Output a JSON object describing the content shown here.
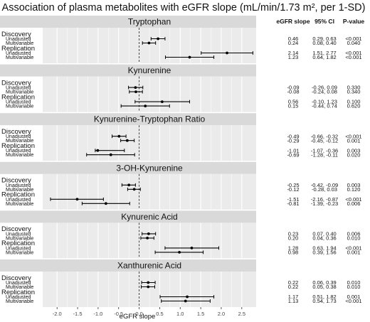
{
  "title": "Association of plasma metabolites with eGFR slope (mL/min/1.73 m², per 1-SD)",
  "columns": {
    "estimate": "eGFR slope",
    "ci": "95% CI",
    "p": "P-value"
  },
  "chart_data": {
    "type": "forest",
    "xlabel": "eGFR slope",
    "xlim": [
      -2.35,
      2.85
    ],
    "xticks": [
      -2.0,
      -1.5,
      -1.0,
      -0.5,
      0.0,
      0.5,
      1.0,
      1.5,
      2.0,
      2.5
    ],
    "xtick_labels": [
      "-2.0",
      "-1.5",
      "-1.0",
      "-0.5",
      "0.0",
      "0.5",
      "1.0",
      "1.5",
      "2.0",
      "2.5"
    ],
    "reference_line": 0,
    "grid": true,
    "panels": [
      {
        "name": "Tryptophan",
        "groups": [
          {
            "name": "Discovery",
            "rows": [
              {
                "label": "Unadjusted",
                "est": 0.46,
                "lo": 0.29,
                "hi": 0.63,
                "est_text": "0.46",
                "ci_text": "0.29, 0.63",
                "p_text": "<0.001"
              },
              {
                "label": "Multivariable",
                "est": 0.24,
                "lo": 0.08,
                "hi": 0.4,
                "est_text": "0.24",
                "ci_text": "0.08, 0.40",
                "p_text": "0.040"
              }
            ]
          },
          {
            "name": "Replication",
            "rows": [
              {
                "label": "Unadjusted",
                "est": 2.14,
                "lo": 1.51,
                "hi": 2.77,
                "est_text": "2.14",
                "ci_text": "1.51, 2.77",
                "p_text": "<0.001"
              },
              {
                "label": "Multivariable",
                "est": 1.23,
                "lo": 0.64,
                "hi": 1.82,
                "est_text": "1.23",
                "ci_text": "0.64, 1.82",
                "p_text": "<0.001"
              }
            ]
          }
        ]
      },
      {
        "name": "Kynurenine",
        "groups": [
          {
            "name": "Discovery",
            "rows": [
              {
                "label": "Unadjusted",
                "est": -0.09,
                "lo": -0.26,
                "hi": 0.09,
                "est_text": "-0.09",
                "ci_text": "-0.26, 0.09",
                "p_text": "0.330"
              },
              {
                "label": "Multivariable",
                "est": -0.08,
                "lo": -0.24,
                "hi": 0.08,
                "est_text": "-0.08",
                "ci_text": "-0.24, 0.08",
                "p_text": "0.340"
              }
            ]
          },
          {
            "name": "Replication",
            "rows": [
              {
                "label": "Unadjusted",
                "est": 0.56,
                "lo": -0.1,
                "hi": 1.23,
                "est_text": "0.56",
                "ci_text": "-0.10, 1.23",
                "p_text": "0.100"
              },
              {
                "label": "Multivariable",
                "est": 0.15,
                "lo": -0.44,
                "hi": 0.74,
                "est_text": "0.15",
                "ci_text": "-0.44, 0.74",
                "p_text": "0.620"
              }
            ]
          }
        ]
      },
      {
        "name": "Kynurenine-Tryptophan Ratio",
        "groups": [
          {
            "name": "Discovery",
            "rows": [
              {
                "label": "Unadjusted",
                "est": -0.49,
                "lo": -0.66,
                "hi": -0.32,
                "est_text": "-0.49",
                "ci_text": "-0.66, -0.32",
                "p_text": "<0.001"
              },
              {
                "label": "Multivariable",
                "est": -0.29,
                "lo": -0.45,
                "hi": -0.12,
                "est_text": "-0.29",
                "ci_text": "-0.45, -0.12",
                "p_text": "0.001"
              }
            ]
          },
          {
            "name": "Replication",
            "rows": [
              {
                "label": "Unadjusted",
                "est": -1.01,
                "lo": -1.07,
                "hi": -0.36,
                "est_text": "-1.01",
                "ci_text": "-1.07, -0.36",
                "p_text": "0.003"
              },
              {
                "label": "Multivariable",
                "est": -0.69,
                "lo": -1.28,
                "hi": -0.11,
                "est_text": "-0.69",
                "ci_text": "-1.28, -0.11",
                "p_text": "0.020"
              }
            ]
          }
        ]
      },
      {
        "name": "3-OH-Kynurenine",
        "groups": [
          {
            "name": "Discovery",
            "rows": [
              {
                "label": "Unadjusted",
                "est": -0.25,
                "lo": -0.42,
                "hi": -0.09,
                "est_text": "-0.25",
                "ci_text": "-0.42, -0.09",
                "p_text": "0.003"
              },
              {
                "label": "Multivariable",
                "est": -0.12,
                "lo": -0.28,
                "hi": 0.03,
                "est_text": "-0.12",
                "ci_text": "-0.28, 0.03",
                "p_text": "0.120"
              }
            ]
          },
          {
            "name": "Replication",
            "rows": [
              {
                "label": "Unadjusted",
                "est": -1.51,
                "lo": -2.16,
                "hi": -0.87,
                "est_text": "-1.51",
                "ci_text": "-2.16, -0.87",
                "p_text": "<0.001"
              },
              {
                "label": "Multivariable",
                "est": -0.81,
                "lo": -1.39,
                "hi": -0.23,
                "est_text": "-0.81",
                "ci_text": "-1.39, -0.23",
                "p_text": "0.006"
              }
            ]
          }
        ]
      },
      {
        "name": "Kynurenic Acid",
        "groups": [
          {
            "name": "Discovery",
            "rows": [
              {
                "label": "Unadjusted",
                "est": 0.23,
                "lo": 0.07,
                "hi": 0.4,
                "est_text": "0.23",
                "ci_text": "0.07, 0.40",
                "p_text": "0.006"
              },
              {
                "label": "Multivariable",
                "est": 0.2,
                "lo": 0.04,
                "hi": 0.36,
                "est_text": "0.20",
                "ci_text": "0.04, 0.36",
                "p_text": "0.010"
              }
            ]
          },
          {
            "name": "Replication",
            "rows": [
              {
                "label": "Unadjusted",
                "est": 1.28,
                "lo": 0.63,
                "hi": 1.94,
                "est_text": "1.28",
                "ci_text": "0.63, 1.94",
                "p_text": "<0.001"
              },
              {
                "label": "Multivariable",
                "est": 0.98,
                "lo": 0.39,
                "hi": 1.56,
                "est_text": "0.98",
                "ci_text": "0.39, 1.56",
                "p_text": "0.001"
              }
            ]
          }
        ]
      },
      {
        "name": "Xanthurenic Acid",
        "groups": [
          {
            "name": "Discovery",
            "rows": [
              {
                "label": "Unadjusted",
                "est": 0.22,
                "lo": 0.06,
                "hi": 0.39,
                "est_text": "0.22",
                "ci_text": "0.06, 0.39",
                "p_text": "0.010"
              },
              {
                "label": "Multivariable",
                "est": 0.22,
                "lo": 0.05,
                "hi": 0.38,
                "est_text": "0.22",
                "ci_text": "0.05, 0.38",
                "p_text": "0.010"
              }
            ]
          },
          {
            "name": "Replication",
            "rows": [
              {
                "label": "Unadjusted",
                "est": 1.17,
                "lo": 0.51,
                "hi": 1.82,
                "est_text": "1.17",
                "ci_text": "0.51, 1.82",
                "p_text": "0.001"
              },
              {
                "label": "Multivariable",
                "est": 1.13,
                "lo": 0.54,
                "hi": 1.73,
                "est_text": "1.13",
                "ci_text": "0.54, 1.73",
                "p_text": "<0.001"
              }
            ]
          }
        ]
      }
    ]
  },
  "colors": {
    "panel_bg": "#ebebeb",
    "strip_bg": "#d9d9d9",
    "grid": "#ffffff",
    "mark": "#000000",
    "reference_line": "#333333"
  }
}
